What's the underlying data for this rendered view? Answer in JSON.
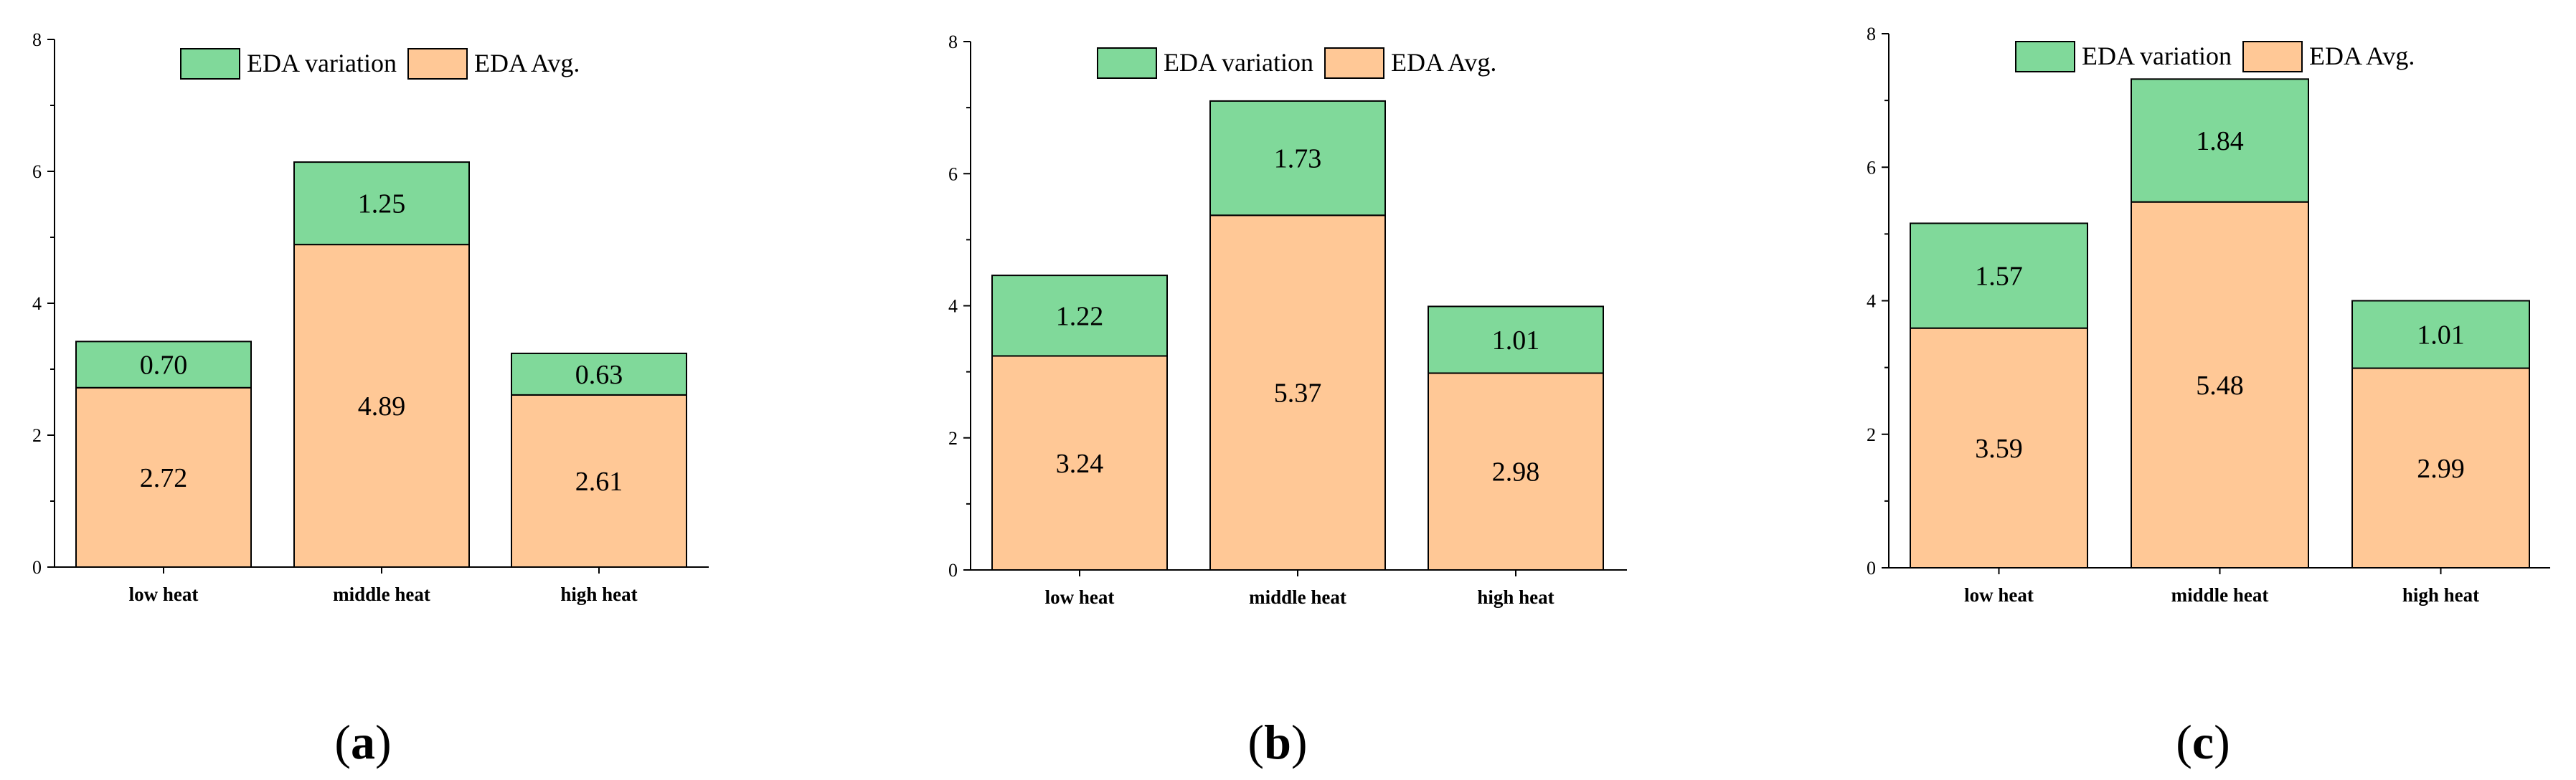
{
  "colors": {
    "avg": "#FFC896",
    "variation": "#80D99A",
    "stroke": "#000000"
  },
  "chart_data": [
    {
      "type": "bar",
      "stacked": true,
      "panel_label": "a",
      "categories": [
        "low heat",
        "middle heat",
        "high heat"
      ],
      "series": [
        {
          "name": "EDA Avg.",
          "values": [
            2.72,
            4.89,
            2.61
          ]
        },
        {
          "name": "EDA variation",
          "values": [
            0.7,
            1.25,
            0.63
          ]
        }
      ],
      "data_labels": {
        "EDA Avg.": [
          "2.72",
          "4.89",
          "2.61"
        ],
        "EDA variation": [
          "0.70",
          "1.25",
          "0.63"
        ]
      },
      "ylim": [
        0,
        8
      ],
      "yticks": [
        "0",
        "2",
        "4",
        "6",
        "8"
      ],
      "legend": [
        "EDA variation",
        "EDA Avg."
      ],
      "legend_position": "top-center"
    },
    {
      "type": "bar",
      "stacked": true,
      "panel_label": "b",
      "categories": [
        "low heat",
        "middle heat",
        "high heat"
      ],
      "series": [
        {
          "name": "EDA Avg.",
          "values": [
            3.24,
            5.37,
            2.98
          ]
        },
        {
          "name": "EDA variation",
          "values": [
            1.22,
            1.73,
            1.01
          ]
        }
      ],
      "data_labels": {
        "EDA Avg.": [
          "3.24",
          "5.37",
          "2.98"
        ],
        "EDA variation": [
          "1.22",
          "1.73",
          "1.01"
        ]
      },
      "ylim": [
        0,
        8
      ],
      "yticks": [
        "0",
        "2",
        "4",
        "6",
        "8"
      ],
      "legend": [
        "EDA variation",
        "EDA Avg."
      ],
      "legend_position": "top-center"
    },
    {
      "type": "bar",
      "stacked": true,
      "panel_label": "c",
      "categories": [
        "low heat",
        "middle heat",
        "high heat"
      ],
      "series": [
        {
          "name": "EDA Avg.",
          "values": [
            3.59,
            5.48,
            2.99
          ]
        },
        {
          "name": "EDA variation",
          "values": [
            1.57,
            1.84,
            1.01
          ]
        }
      ],
      "data_labels": {
        "EDA Avg.": [
          "3.59",
          "5.48",
          "2.99"
        ],
        "EDA variation": [
          "1.57",
          "1.84",
          "1.01"
        ]
      },
      "ylim": [
        0,
        8
      ],
      "yticks": [
        "0",
        "2",
        "4",
        "6",
        "8"
      ],
      "legend": [
        "EDA variation",
        "EDA Avg."
      ],
      "legend_position": "top-center"
    }
  ]
}
